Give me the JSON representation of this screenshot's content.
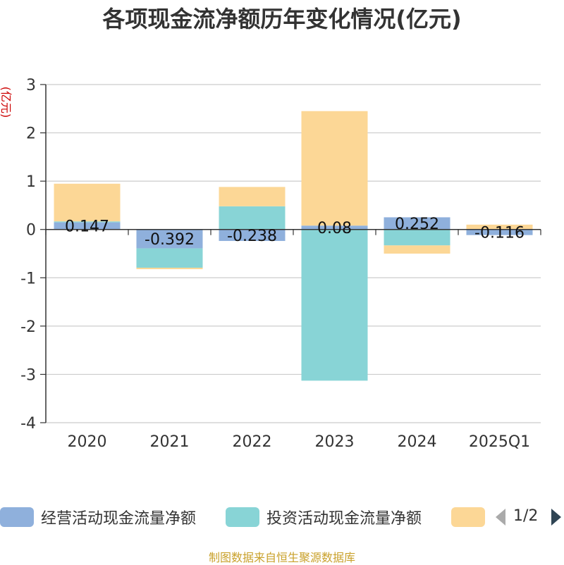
{
  "chart_data": {
    "type": "bar",
    "stacked": true,
    "title": "各项现金流净额历年变化情况(亿元)",
    "ylabel": "(亿元)",
    "xlabel": "",
    "categories": [
      "2020",
      "2021",
      "2022",
      "2023",
      "2024",
      "2025Q1"
    ],
    "ylim": [
      -4,
      3
    ],
    "yticks": [
      3,
      2,
      1,
      0,
      -1,
      -2,
      -3,
      -4
    ],
    "grid": true,
    "series": [
      {
        "name": "经营活动现金流量净额",
        "color": "#8fb0dc",
        "values": [
          0.147,
          -0.392,
          -0.238,
          0.08,
          0.252,
          -0.116
        ],
        "data_labels": [
          "0.147",
          "-0.392",
          "-0.238",
          "0.08",
          "0.252",
          "-0.116"
        ]
      },
      {
        "name": "投资活动现金流量净额",
        "color": "#88d4d6",
        "values": [
          0.02,
          -0.4,
          0.48,
          -3.13,
          -0.33,
          0.0
        ]
      },
      {
        "name": "",
        "color": "#fcd796",
        "values": [
          0.78,
          -0.03,
          0.4,
          2.37,
          -0.17,
          0.1
        ]
      }
    ],
    "legend": {
      "position": "bottom",
      "page": "1/2"
    }
  },
  "source_note": "制图数据来自恒生聚源数据库"
}
